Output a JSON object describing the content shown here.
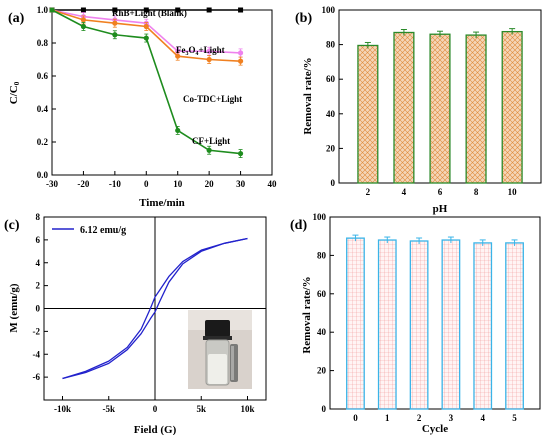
{
  "chart_data": [
    {
      "panel": "(a)",
      "type": "line",
      "xlabel": "Time/min",
      "ylabel": "C/C",
      "ylabel_sub": "0",
      "xlim": [
        -30,
        40
      ],
      "ylim": [
        0.0,
        1.0
      ],
      "xticks": [
        "-30",
        "-20",
        "-10",
        "0",
        "10",
        "20",
        "30",
        "40"
      ],
      "yticks": [
        "0.0",
        "0.2",
        "0.4",
        "0.6",
        "0.8",
        "1.0"
      ],
      "series": [
        {
          "name": "RhB+Light (Blank)",
          "color": "#000000",
          "marker": "square",
          "x": [
            -30,
            -20,
            -10,
            0,
            10,
            20,
            30
          ],
          "y": [
            1.0,
            1.0,
            1.0,
            1.0,
            1.0,
            1.0,
            1.0
          ]
        },
        {
          "name": "Fe3O4+Light",
          "name_base": "Fe",
          "name_sub1": "3",
          "name_mid": "O",
          "name_sub2": "4",
          "name_tail": "+Light",
          "color": "#ee82ee",
          "marker": "circle",
          "x": [
            -30,
            -20,
            -10,
            0,
            10,
            20,
            30
          ],
          "y": [
            1.0,
            0.96,
            0.94,
            0.92,
            0.75,
            0.75,
            0.74
          ]
        },
        {
          "name": "Co-TDC+Light",
          "color": "#f08020",
          "marker": "circle",
          "x": [
            -30,
            -20,
            -10,
            0,
            10,
            20,
            30
          ],
          "y": [
            1.0,
            0.94,
            0.92,
            0.9,
            0.72,
            0.7,
            0.69
          ]
        },
        {
          "name": "CF+Light",
          "color": "#1e8c1e",
          "marker": "circle",
          "x": [
            -30,
            -20,
            -10,
            0,
            10,
            20,
            30
          ],
          "y": [
            1.0,
            0.9,
            0.85,
            0.83,
            0.27,
            0.15,
            0.13
          ]
        }
      ]
    },
    {
      "panel": "(b)",
      "type": "bar",
      "xlabel": "pH",
      "ylabel": "Removal rate/%",
      "categories": [
        "2",
        "4",
        "6",
        "8",
        "10"
      ],
      "values": [
        79.5,
        87,
        86,
        85.5,
        87.5
      ],
      "ylim": [
        0,
        100
      ],
      "yticks": [
        "0",
        "20",
        "40",
        "60",
        "80",
        "100"
      ],
      "bar_fill": "#f4d5b8",
      "bar_edge": "#2a8a2a"
    },
    {
      "panel": "(c)",
      "type": "line",
      "xlabel": "Field (G)",
      "ylabel": "M (emu/g)",
      "xlim": [
        -12000,
        12000
      ],
      "ylim": [
        -8,
        8
      ],
      "xticks": [
        "-10k",
        "-5k",
        "0",
        "5k",
        "10k"
      ],
      "yticks": [
        "-6",
        "-4",
        "-2",
        "0",
        "2",
        "4",
        "6",
        "8"
      ],
      "series": [
        {
          "name": "6.12 emu/g",
          "color": "#2222cc",
          "x": [
            -10000,
            -7500,
            -5000,
            -3000,
            -1500,
            -500,
            0,
            500,
            1500,
            3000,
            5000,
            7500,
            10000
          ],
          "y": [
            -6.12,
            -5.6,
            -4.8,
            -3.6,
            -2.2,
            -0.9,
            -0.3,
            0.6,
            2.3,
            3.9,
            5.0,
            5.7,
            6.12
          ]
        },
        {
          "name": "",
          "color": "#2222cc",
          "x": [
            10000,
            7500,
            5000,
            3000,
            1500,
            500,
            0,
            -500,
            -1500,
            -3000,
            -5000,
            -7500,
            -10000
          ],
          "y": [
            6.12,
            5.7,
            5.1,
            4.1,
            2.8,
            1.6,
            1.0,
            0.0,
            -1.8,
            -3.4,
            -4.6,
            -5.5,
            -6.12
          ]
        }
      ]
    },
    {
      "panel": "(d)",
      "type": "bar",
      "xlabel": "Cycle",
      "ylabel": "Removal rate/%",
      "categories": [
        "0",
        "1",
        "2",
        "3",
        "4",
        "5"
      ],
      "values": [
        89,
        88,
        87.5,
        88,
        86.5,
        86.5
      ],
      "ylim": [
        0,
        100
      ],
      "yticks": [
        "0",
        "20",
        "40",
        "60",
        "80",
        "100"
      ],
      "bar_fill": "#fbe1e1",
      "bar_edge": "#3ab4e8"
    }
  ]
}
